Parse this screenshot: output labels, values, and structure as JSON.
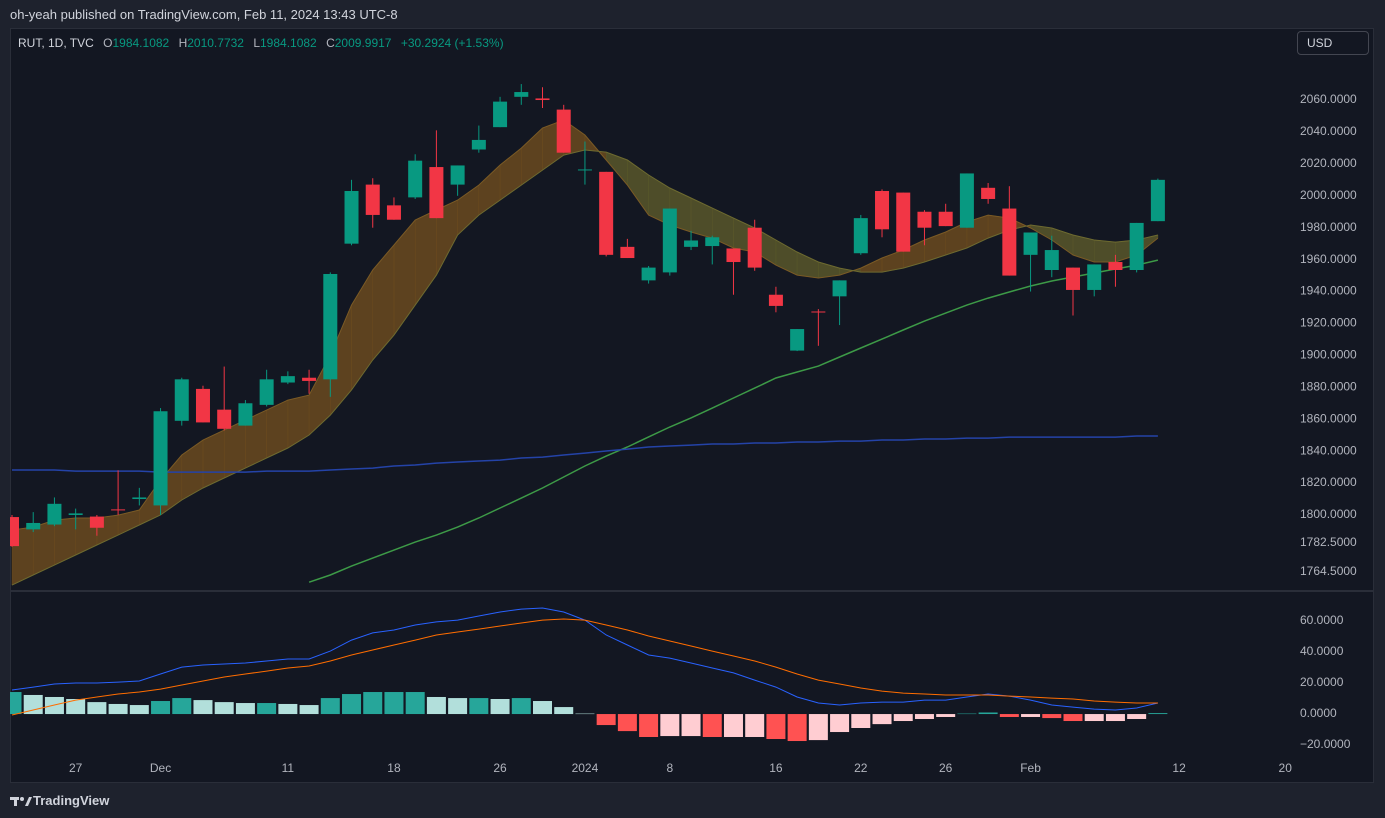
{
  "header": {
    "published": "oh-yeah published on TradingView.com, Feb 11, 2024 13:43 UTC-8"
  },
  "legend": {
    "symbol": "RUT, 1D, TVC",
    "o_label": "O",
    "o": "1984.1082",
    "h_label": "H",
    "h": "2010.7732",
    "l_label": "L",
    "l": "1984.1082",
    "c_label": "C",
    "c": "2009.9917",
    "change": "+30.2924 (+1.53%)"
  },
  "currency_button": "USD",
  "footer": {
    "brand": "TradingView"
  },
  "chart_data": [
    {
      "type": "candlestick",
      "categories": [
        null,
        null,
        null,
        "27",
        null,
        null,
        null,
        "Dec",
        null,
        null,
        null,
        null,
        null,
        "11",
        null,
        null,
        null,
        null,
        "18",
        null,
        null,
        null,
        null,
        "26",
        null,
        null,
        null,
        "2024",
        null,
        null,
        null,
        "8",
        null,
        null,
        null,
        null,
        "16",
        null,
        null,
        null,
        "22",
        null,
        null,
        null,
        "26",
        null,
        null,
        null,
        "Feb",
        null,
        null,
        null,
        null,
        null,
        null,
        "12",
        null,
        null,
        null,
        null,
        "20"
      ],
      "open": [
        1798.7,
        1791,
        1794,
        1800,
        1799,
        1803.5,
        1810,
        1806,
        1859,
        1879,
        1866,
        1856,
        1869,
        1883,
        1886,
        1885,
        1970,
        2007,
        1994,
        1999,
        2018,
        2007,
        2029,
        2043,
        2062,
        2061,
        2054,
        2016,
        2015,
        1968,
        1947,
        1952,
        1968,
        1968.5,
        1967,
        1980,
        1938,
        1903,
        1927.5,
        1937,
        1964,
        2003,
        2002,
        1990,
        1990,
        1980,
        2005,
        1992,
        1963,
        1953.5,
        1955,
        1941,
        1958.5,
        1953.5,
        1984.1082,
        null,
        null,
        null,
        null,
        null,
        null
      ],
      "high": [
        1800,
        1801.8,
        1811,
        1804,
        1800,
        1828,
        1817,
        1867,
        1886,
        1881,
        1893,
        1872,
        1891,
        1890,
        1891,
        1952,
        2010,
        2011,
        1999,
        2026,
        2041,
        2019,
        2044,
        2062,
        2070,
        2068,
        2057,
        2034,
        2015,
        1973,
        1956,
        1992,
        1978,
        1975,
        1967,
        1985,
        1943,
        1916.5,
        1929,
        1947,
        1988,
        2004,
        2002,
        1991,
        1995,
        2014,
        2008,
        2006,
        1977,
        1975,
        1955,
        1957,
        1963,
        1983,
        2010.7732,
        null,
        null,
        null,
        null,
        null,
        null
      ],
      "low": [
        1780,
        1789.3,
        1793,
        1791,
        1787,
        1800,
        1806,
        1800,
        1856,
        1858,
        1853,
        1856,
        1868,
        1882,
        1876,
        1874,
        1969,
        1980,
        1985,
        1998,
        1986,
        2000,
        2027,
        2043,
        2057,
        2055,
        2027,
        2007,
        1962,
        1961,
        1945,
        1950,
        1966,
        1957,
        1938,
        1953,
        1927,
        1902.7,
        1906,
        1919,
        1963,
        1974,
        1965,
        1969,
        1981,
        1980,
        1995,
        1950,
        1940,
        1949,
        1925,
        1937,
        1943,
        1952,
        1984.1082,
        null,
        null,
        null,
        null,
        null,
        null
      ],
      "close": [
        1780.5,
        1795,
        1807,
        1801,
        1792,
        1803,
        1811,
        1865,
        1885,
        1858,
        1854,
        1870,
        1885,
        1887,
        1884,
        1951,
        2003,
        1988,
        1985,
        2022,
        1986,
        2019,
        2035,
        2059,
        2065,
        2060,
        2027,
        2016.5,
        1963,
        1961,
        1955,
        1992,
        1972,
        1974,
        1958.5,
        1955,
        1931,
        1916.5,
        1927,
        1947,
        1986,
        1979,
        1965,
        1980,
        1981,
        2014,
        1998,
        1950,
        1977,
        1966,
        1941,
        1957,
        1953.5,
        1983,
        2009.9917,
        null,
        null,
        null,
        null,
        null,
        null
      ],
      "up_color": "#089981",
      "down_color": "#f23645",
      "ribbon_colors": [
        "#6b4a1f",
        "#59572a"
      ],
      "series": [
        {
          "color": "#7a5a25",
          "values": [
            1790.6,
            1792.4,
            1796.8,
            1798.1,
            1798.1,
            1799.9,
            1803.1,
            1821.9,
            1837.6,
            1846.9,
            1853.2,
            1859.5,
            1865.7,
            1872.0,
            1875.1,
            1900.2,
            1931.5,
            1953.5,
            1969.2,
            1984.8,
            1991.1,
            1997.3,
            2006.7,
            2019.3,
            2029.9,
            2042.5,
            2047.5,
            2038.1,
            2022.4,
            2006.7,
            1987.9,
            1981.7,
            1977.3,
            1973.5,
            1967.3,
            1964.8,
            1956.6,
            1950.3,
            1948.5,
            1950.3,
            1954.7,
            1961.0,
            1966.0,
            1972.3,
            1977.3,
            1983.6,
            1987.9,
            1986.0,
            1979.8,
            1972.3,
            1962.9,
            1958.5,
            1958.5,
            1962.9,
            1973.5,
            null,
            null,
            null,
            null,
            null,
            null
          ]
        },
        {
          "color": "#6d6a30",
          "values": [
            1756.1,
            1762.4,
            1768.6,
            1774.9,
            1781.2,
            1787.4,
            1793.7,
            1800.0,
            1809.4,
            1816.9,
            1823.2,
            1829.4,
            1835.7,
            1842.0,
            1850.1,
            1862.6,
            1878.3,
            1897.1,
            1912.7,
            1931.5,
            1950.3,
            1975.4,
            1987.9,
            1997.3,
            2006.7,
            2016.1,
            2025.5,
            2028.7,
            2027.4,
            2022.4,
            2013.0,
            2004.9,
            1998.6,
            1992.3,
            1986.0,
            1979.8,
            1972.3,
            1964.8,
            1958.5,
            1954.7,
            1952.2,
            1952.2,
            1954.7,
            1958.5,
            1962.9,
            1967.3,
            1973.5,
            1978.5,
            1981.7,
            1979.8,
            1975.4,
            1972.3,
            1971.0,
            1972.3,
            1975.4,
            null,
            null,
            null,
            null,
            null,
            null
          ]
        },
        {
          "color": "#3d9a47",
          "values": [
            null,
            null,
            null,
            null,
            null,
            null,
            null,
            null,
            null,
            null,
            null,
            null,
            null,
            null,
            1757.9,
            1762.4,
            1768.0,
            1773.0,
            1778.0,
            1783.0,
            1787.4,
            1792.4,
            1798.1,
            1804.4,
            1810.6,
            1816.9,
            1823.8,
            1830.7,
            1836.9,
            1842.6,
            1848.9,
            1855.1,
            1860.8,
            1867.0,
            1873.3,
            1879.5,
            1885.8,
            1889.6,
            1893.3,
            1899.0,
            1904.6,
            1910.2,
            1915.9,
            1921.5,
            1926.5,
            1931.5,
            1935.9,
            1939.7,
            1943.5,
            1946.6,
            1949.1,
            1951.6,
            1954.1,
            1956.6,
            1959.7,
            null,
            null,
            null,
            null,
            null,
            null
          ]
        },
        {
          "color": "#2443a8",
          "values": [
            1828.2,
            1828.2,
            1828.2,
            1827.5,
            1827.5,
            1827.5,
            1827.5,
            1826.9,
            1826.9,
            1826.9,
            1826.9,
            1826.9,
            1827.5,
            1827.5,
            1827.5,
            1828.2,
            1828.8,
            1829.4,
            1830.7,
            1831.3,
            1832.5,
            1833.2,
            1833.8,
            1834.4,
            1835.7,
            1836.3,
            1837.6,
            1838.8,
            1840.1,
            1841.3,
            1842.6,
            1843.2,
            1843.8,
            1844.5,
            1844.5,
            1845.1,
            1845.1,
            1845.7,
            1845.7,
            1846.3,
            1846.3,
            1847.0,
            1847.0,
            1847.6,
            1847.6,
            1848.2,
            1848.2,
            1848.8,
            1848.8,
            1848.8,
            1848.8,
            1848.8,
            1848.8,
            1849.5,
            1849.5,
            null,
            null,
            null,
            null,
            null,
            null
          ]
        }
      ],
      "ylim": [
        1753.0,
        2104.5
      ],
      "yticks": [
        {
          "value": 2060,
          "label": "2060.0000"
        },
        {
          "value": 2040,
          "label": "2040.0000"
        },
        {
          "value": 2020,
          "label": "2020.0000"
        },
        {
          "value": 2000,
          "label": "2000.0000"
        },
        {
          "value": 1980,
          "label": "1980.0000"
        },
        {
          "value": 1960,
          "label": "1960.0000"
        },
        {
          "value": 1940,
          "label": "1940.0000"
        },
        {
          "value": 1920,
          "label": "1920.0000"
        },
        {
          "value": 1900,
          "label": "1900.0000"
        },
        {
          "value": 1880,
          "label": "1880.0000"
        },
        {
          "value": 1860,
          "label": "1860.0000"
        },
        {
          "value": 1840,
          "label": "1840.0000"
        },
        {
          "value": 1820,
          "label": "1820.0000"
        },
        {
          "value": 1800,
          "label": "1800.0000"
        },
        {
          "value": 1782.5,
          "label": "1782.5000"
        },
        {
          "value": 1764.5,
          "label": "1764.5000"
        }
      ]
    },
    {
      "type": "macd",
      "histogram": {
        "colors": [
          "#26a69a",
          "#b2dfdb",
          "#ff5252",
          "#ffcdd2"
        ],
        "values": [
          14.2,
          12.3,
          11.0,
          9.7,
          7.7,
          6.5,
          5.8,
          8.4,
          10.3,
          9.0,
          7.7,
          7.1,
          7.1,
          6.5,
          5.8,
          10.3,
          12.9,
          14.2,
          14.2,
          14.2,
          11.0,
          10.3,
          10.3,
          9.7,
          10.3,
          8.4,
          4.5,
          0.3,
          -7.1,
          -11.0,
          -14.8,
          -14.2,
          -14.2,
          -14.8,
          -14.8,
          -14.8,
          -16.1,
          -17.4,
          -16.8,
          -11.6,
          -9.0,
          -6.5,
          -4.5,
          -3.2,
          -1.9,
          0.3,
          1.0,
          -1.9,
          -1.9,
          -2.6,
          -4.5,
          -4.5,
          -4.5,
          -3.2,
          0.6,
          null,
          null,
          null,
          null,
          null,
          null
        ]
      },
      "series": [
        {
          "color": "#2962ff",
          "values": [
            15.5,
            17.4,
            19.4,
            20.0,
            20.0,
            20.6,
            21.3,
            25.8,
            30.3,
            31.6,
            32.3,
            32.9,
            34.2,
            35.5,
            35.5,
            40.6,
            47.7,
            52.3,
            54.2,
            57.4,
            59.4,
            60.6,
            63.2,
            65.8,
            67.7,
            68.4,
            65.8,
            60.6,
            51.0,
            44.5,
            38.1,
            36.1,
            32.9,
            29.7,
            26.5,
            21.9,
            17.4,
            11.0,
            7.1,
            5.8,
            7.1,
            7.7,
            7.7,
            9.0,
            9.0,
            11.0,
            12.9,
            11.6,
            9.0,
            5.8,
            4.5,
            3.2,
            2.6,
            3.9,
            7.1,
            null,
            null,
            null,
            null,
            null,
            null
          ]
        },
        {
          "color": "#ff6d00",
          "values": [
            -0.6,
            2.6,
            5.8,
            9.0,
            11.0,
            12.9,
            14.2,
            16.1,
            18.7,
            21.3,
            23.9,
            25.8,
            27.7,
            29.7,
            31.0,
            34.2,
            38.1,
            41.3,
            44.5,
            47.7,
            51.0,
            52.9,
            54.8,
            56.8,
            58.7,
            60.6,
            61.3,
            60.6,
            57.4,
            54.2,
            50.3,
            47.1,
            43.9,
            40.6,
            37.4,
            34.2,
            30.3,
            25.8,
            21.9,
            19.4,
            16.8,
            14.8,
            13.5,
            12.9,
            12.3,
            12.3,
            12.3,
            11.6,
            11.0,
            10.3,
            9.7,
            8.4,
            7.7,
            7.1,
            7.1,
            null,
            null,
            null,
            null,
            null,
            null
          ]
        }
      ],
      "ylim": [
        -27.7,
        78.7
      ],
      "yticks": [
        {
          "value": 60,
          "label": "60.0000"
        },
        {
          "value": 40,
          "label": "40.0000"
        },
        {
          "value": 20,
          "label": "20.0000"
        },
        {
          "value": 0,
          "label": "0.0000"
        },
        {
          "value": -20,
          "label": "−20.0000"
        }
      ]
    }
  ]
}
